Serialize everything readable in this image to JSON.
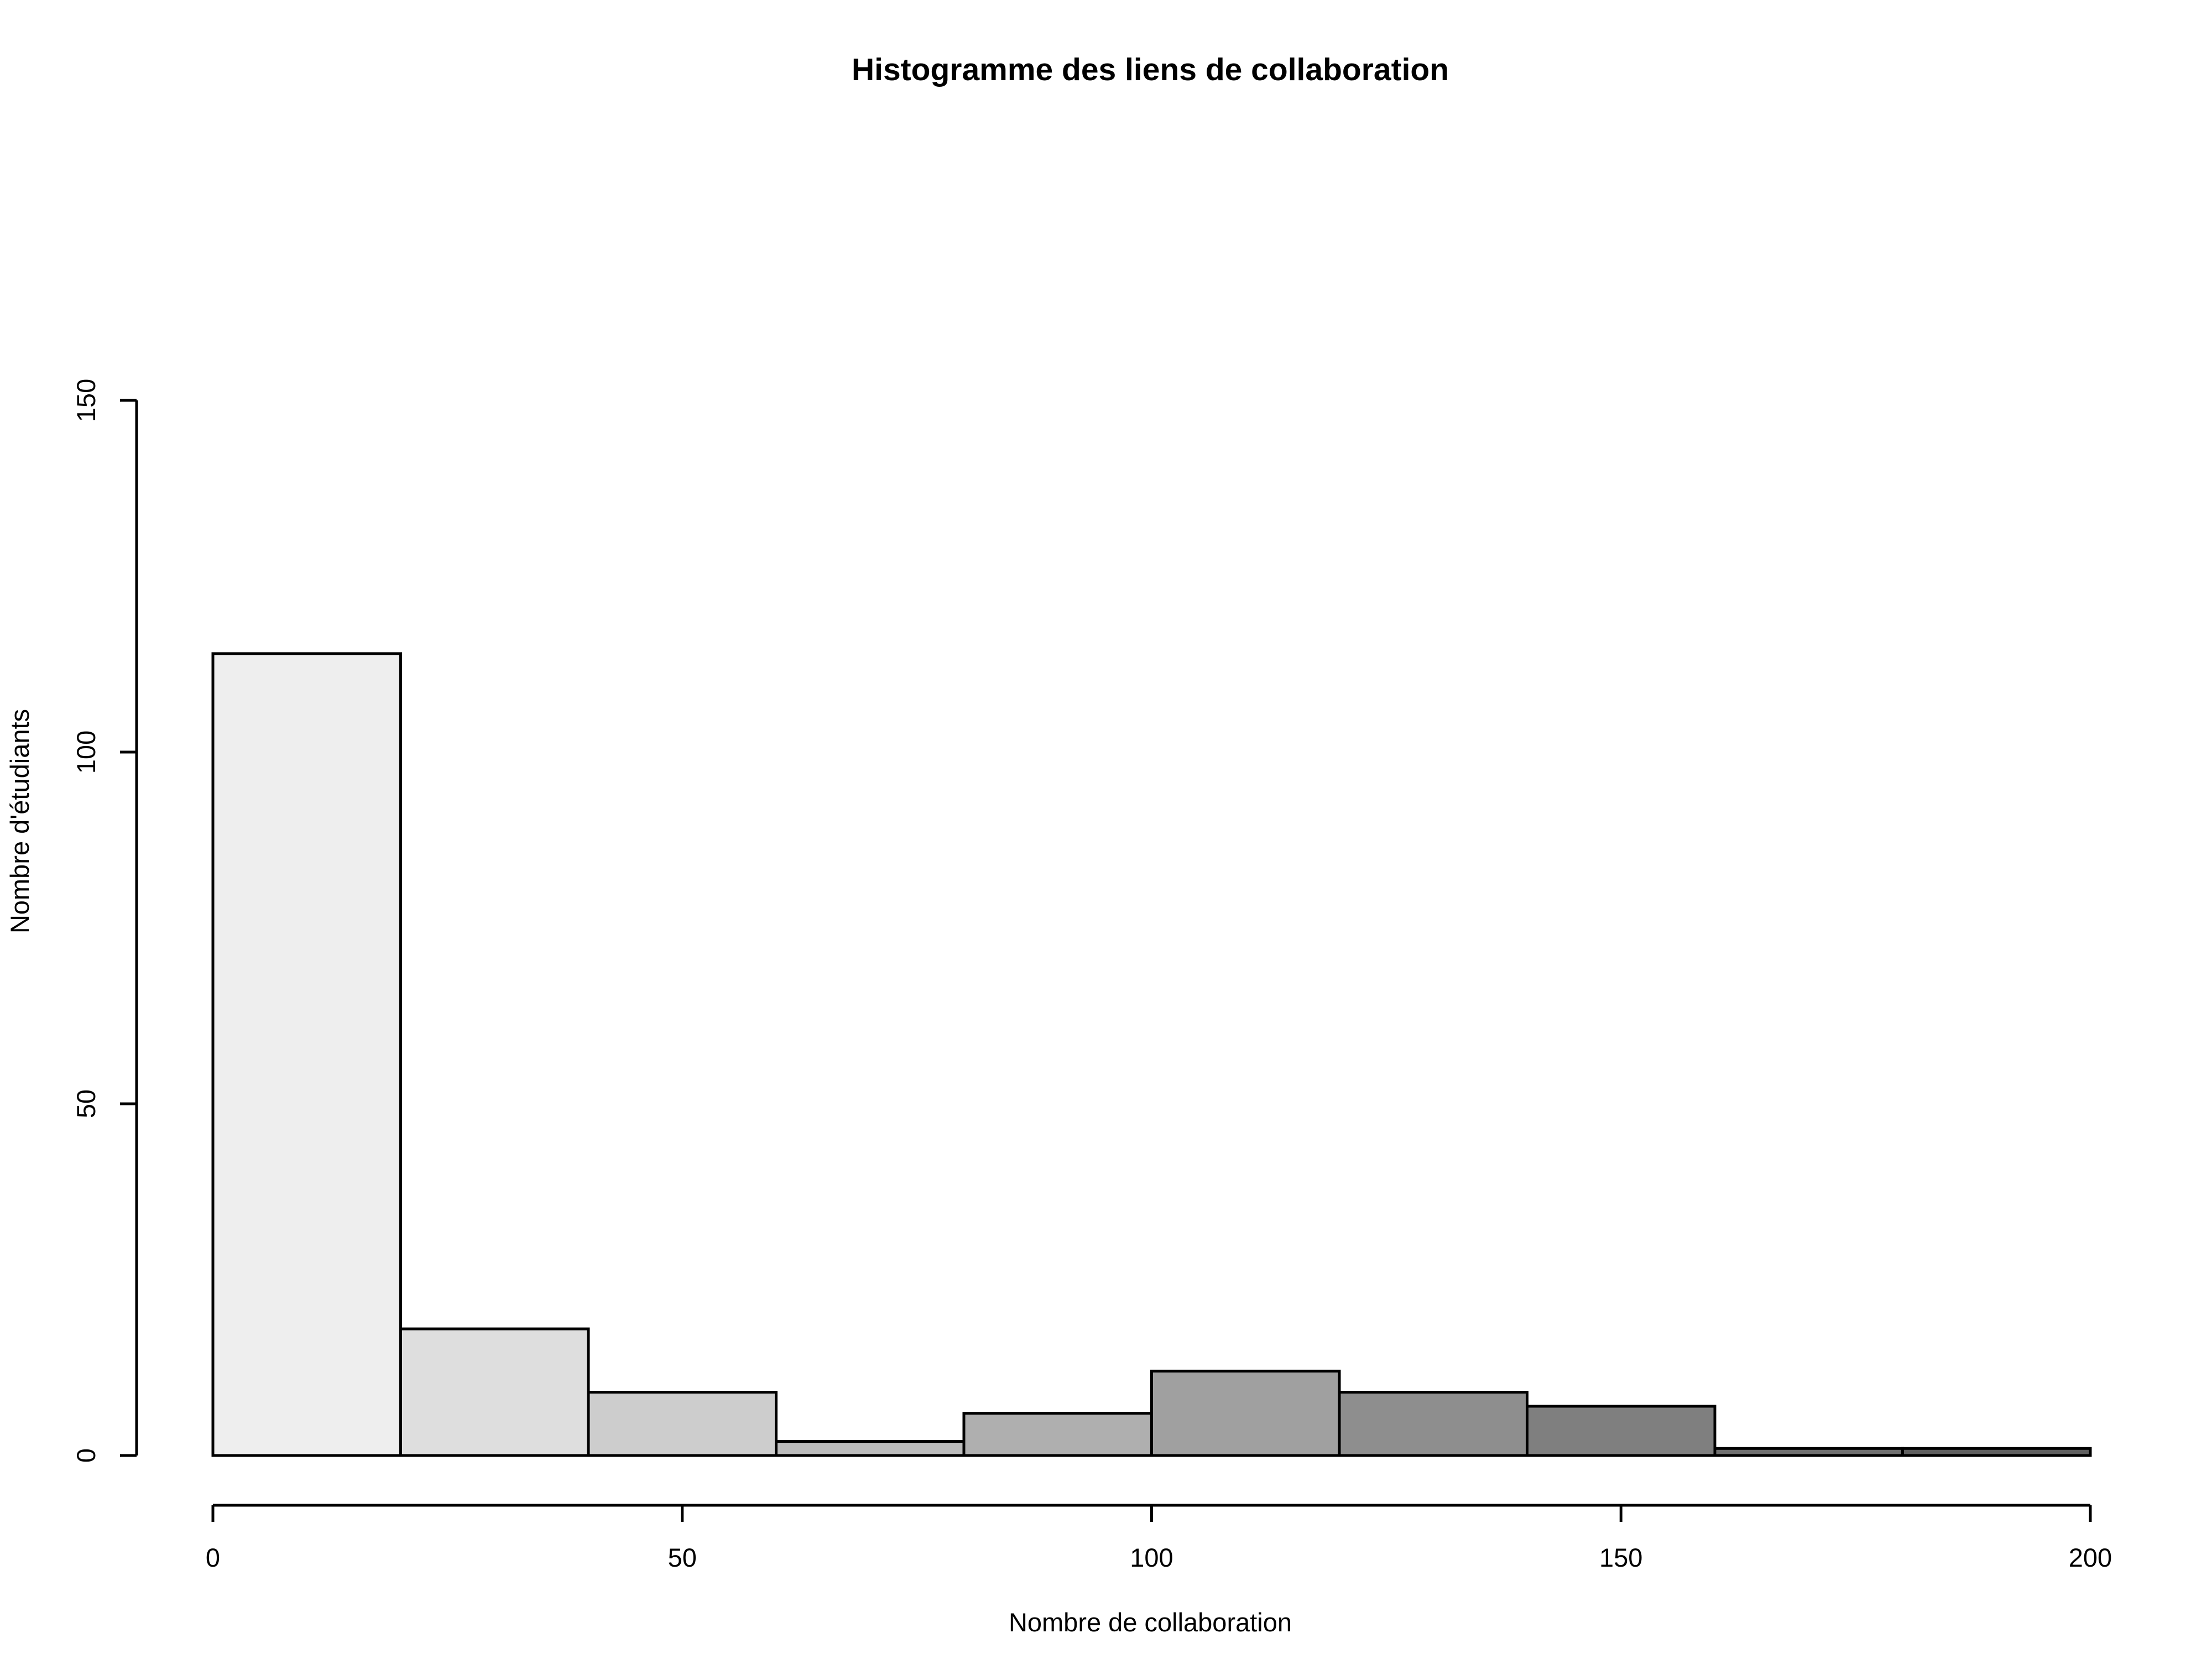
{
  "chart_data": {
    "type": "bar",
    "title": "Histogramme des liens de collaboration",
    "xlabel": "Nombre de collaboration",
    "ylabel": "Nombre d'étudiants",
    "bins": [
      {
        "x0": 0,
        "x1": 20,
        "count": 114,
        "color": "#eeeeee"
      },
      {
        "x0": 20,
        "x1": 40,
        "count": 18,
        "color": "#dedede"
      },
      {
        "x0": 40,
        "x1": 60,
        "count": 9,
        "color": "#cdcdcd"
      },
      {
        "x0": 60,
        "x1": 80,
        "count": 2,
        "color": "#bcbcbc"
      },
      {
        "x0": 80,
        "x1": 100,
        "count": 6,
        "color": "#afafaf"
      },
      {
        "x0": 100,
        "x1": 120,
        "count": 12,
        "color": "#a0a0a0"
      },
      {
        "x0": 120,
        "x1": 140,
        "count": 9,
        "color": "#8e8e8e"
      },
      {
        "x0": 140,
        "x1": 160,
        "count": 7,
        "color": "#7f7f7f"
      },
      {
        "x0": 160,
        "x1": 180,
        "count": 1,
        "color": "#707070"
      },
      {
        "x0": 180,
        "x1": 200,
        "count": 1,
        "color": "#606060"
      }
    ],
    "xlim": [
      0,
      200
    ],
    "ylim": [
      0,
      150
    ],
    "xticks": [
      "0",
      "50",
      "100",
      "150",
      "200"
    ],
    "yticks": [
      "0",
      "50",
      "100",
      "150"
    ],
    "grid": false
  }
}
